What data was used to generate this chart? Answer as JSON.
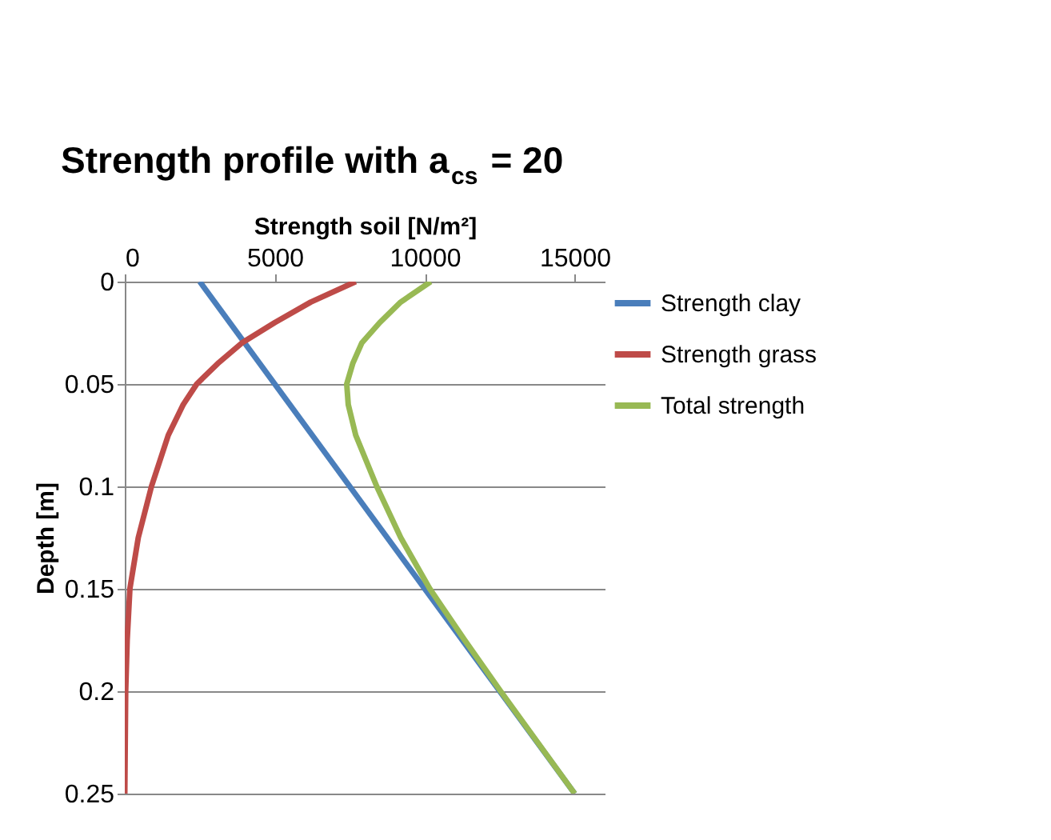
{
  "chart_data": {
    "type": "line",
    "title": "Strength profile with a$_{cs}$ = 20",
    "xlabel": "Strength soil [N/m²]",
    "ylabel": "Depth [m]",
    "xlim": [
      0,
      16000
    ],
    "xticks": [
      0,
      5000,
      10000,
      15000
    ],
    "ylim": [
      0.25,
      0
    ],
    "yticks": [
      0,
      0.05,
      0.1,
      0.15,
      0.2,
      0.25
    ],
    "grid": "y",
    "legend": "right",
    "marker": "none",
    "line_style": "solid",
    "series": [
      {
        "name": "Strength clay",
        "color": "#4a7ebb",
        "x": [
          2500,
          15000
        ],
        "values": [
          0,
          0.25
        ]
      },
      {
        "name": "Strength grass",
        "color": "#be4b48",
        "x": [
          7700,
          6200,
          5000,
          3900,
          3100,
          2400,
          1950,
          1450,
          890,
          450,
          170,
          80,
          30,
          0
        ],
        "values": [
          0,
          0.01,
          0.02,
          0.03,
          0.04,
          0.05,
          0.06,
          0.075,
          0.1,
          0.125,
          0.15,
          0.175,
          0.2,
          0.25
        ]
      },
      {
        "name": "Total strength",
        "color": "#98b954",
        "x": [
          10200,
          9200,
          8500,
          7900,
          7600,
          7400,
          7450,
          7700,
          8400,
          9200,
          10170,
          11330,
          12530,
          15000
        ],
        "values": [
          0,
          0.01,
          0.02,
          0.03,
          0.04,
          0.05,
          0.06,
          0.075,
          0.1,
          0.125,
          0.15,
          0.175,
          0.2,
          0.25
        ]
      }
    ]
  }
}
